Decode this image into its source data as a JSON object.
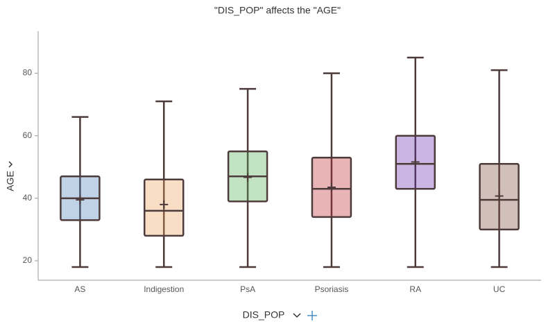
{
  "chart_data": {
    "type": "box",
    "title": "\"DIS_POP\" affects the \"AGE\"",
    "x_label": "DIS_POP",
    "y_label": "AGE",
    "categories": [
      "AS",
      "Indigestion",
      "PsA",
      "Psoriasis",
      "RA",
      "UC"
    ],
    "colors": [
      "#4a7fb5",
      "#e8a15a",
      "#4caf50",
      "#c0282d",
      "#6a2fb0",
      "#7b4a36"
    ],
    "min": [
      18,
      18,
      18,
      18,
      18,
      18
    ],
    "q1": [
      33,
      28,
      39,
      34,
      43,
      30
    ],
    "median": [
      40,
      36,
      47,
      43,
      51,
      39.5
    ],
    "q3": [
      47,
      46,
      55,
      53,
      60,
      51
    ],
    "max": [
      66,
      71,
      75,
      80,
      85,
      81
    ],
    "mean": [
      39.5,
      38,
      46.7,
      43.5,
      51.6,
      40.7
    ],
    "ylim": [
      14,
      91
    ],
    "yticks": [
      20,
      40,
      60,
      80
    ]
  }
}
